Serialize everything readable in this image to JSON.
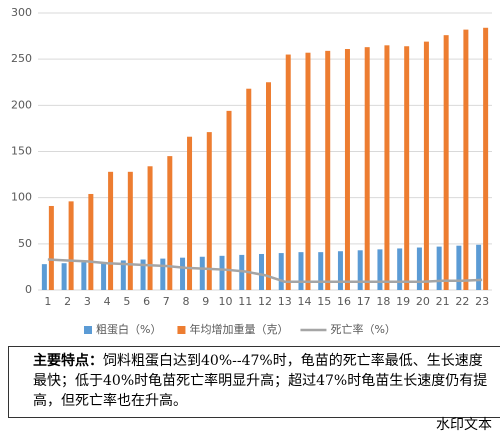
{
  "chart_data": {
    "type": "bar-line",
    "categories": [
      "1",
      "2",
      "3",
      "4",
      "5",
      "6",
      "7",
      "8",
      "9",
      "10",
      "11",
      "12",
      "13",
      "14",
      "15",
      "16",
      "17",
      "18",
      "19",
      "20",
      "21",
      "22",
      "23"
    ],
    "series": [
      {
        "name": "粗蛋白（%）",
        "color": "#5b9bd5",
        "kind": "bar",
        "values": [
          28,
          29,
          30,
          30,
          32,
          33,
          34,
          35,
          36,
          37,
          38,
          39,
          40,
          41,
          41,
          42,
          43,
          44,
          45,
          46,
          47,
          48,
          49
        ]
      },
      {
        "name": "年均增加重量（克）",
        "color": "#ed7d31",
        "kind": "bar",
        "values": [
          91,
          96,
          104,
          128,
          128,
          134,
          145,
          166,
          171,
          194,
          218,
          225,
          255,
          257,
          259,
          261,
          263,
          265,
          264,
          269,
          276,
          282,
          284
        ]
      },
      {
        "name": "死亡率（%）",
        "color": "#a5a5a5",
        "kind": "line",
        "values": [
          33,
          32,
          31,
          29,
          28,
          27,
          26,
          24,
          23,
          22,
          20,
          16,
          9,
          9,
          9,
          9,
          9,
          9,
          9,
          9,
          10,
          10,
          11
        ]
      }
    ],
    "ylim": [
      0,
      300
    ],
    "yticks": [
      0,
      50,
      100,
      150,
      200,
      250,
      300
    ],
    "grid": true
  },
  "caption": {
    "label": "主要特点：",
    "text": "饲料粗蛋白达到40%--47%时，龟苗的死亡率最低、生长速度最快；低于40%时龟苗死亡率明显升高；超过47%时龟苗生长速度仍有提高，但死亡率也在升高。"
  },
  "watermark": "水印文本"
}
